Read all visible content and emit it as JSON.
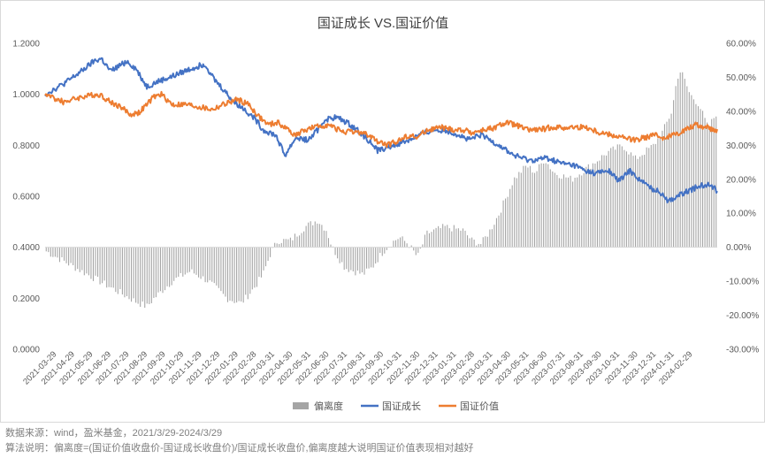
{
  "chart_data": {
    "type": "combo",
    "title": "国证成长 VS.国证价值",
    "left_axis": {
      "ylim": [
        0,
        1.2
      ],
      "step": 0.2,
      "ticks": [
        "0.0000",
        "0.2000",
        "0.4000",
        "0.6000",
        "0.8000",
        "1.0000",
        "1.2000"
      ]
    },
    "right_axis": {
      "ylim": [
        -30,
        60
      ],
      "step": 10,
      "ticks": [
        "-30.00%",
        "-20.00%",
        "-10.00%",
        "0.00%",
        "10.00%",
        "20.00%",
        "30.00%",
        "40.00%",
        "50.00%",
        "60.00%"
      ]
    },
    "categories": [
      "2021-03-29",
      "2021-04-29",
      "2021-05-29",
      "2021-06-29",
      "2021-07-29",
      "2021-08-29",
      "2021-09-29",
      "2021-10-29",
      "2021-11-29",
      "2021-12-29",
      "2022-01-29",
      "2022-02-28",
      "2022-03-31",
      "2022-04-30",
      "2022-05-31",
      "2022-06-30",
      "2022-07-31",
      "2022-08-31",
      "2022-09-30",
      "2022-10-31",
      "2022-11-30",
      "2022-12-31",
      "2023-01-31",
      "2023-02-28",
      "2023-03-31",
      "2023-04-30",
      "2023-05-31",
      "2023-06-30",
      "2023-07-31",
      "2023-08-31",
      "2023-09-30",
      "2023-10-31",
      "2023-11-30",
      "2023-12-31",
      "2024-01-31",
      "2024-02-29"
    ],
    "legend_position": "bottom",
    "series": [
      {
        "name": "偏离度",
        "type": "bar",
        "axis": "right",
        "color": "#a5a5a5",
        "keypoints": [
          [
            0,
            -1
          ],
          [
            1,
            -4
          ],
          [
            2,
            -7
          ],
          [
            3,
            -10
          ],
          [
            4,
            -13
          ],
          [
            5,
            -16
          ],
          [
            5.6,
            -17.5
          ],
          [
            6,
            -15
          ],
          [
            7,
            -10
          ],
          [
            8,
            -7
          ],
          [
            9,
            -10
          ],
          [
            10,
            -15
          ],
          [
            10.8,
            -16.5
          ],
          [
            11.5,
            -12
          ],
          [
            12,
            -8
          ],
          [
            12.4,
            -2
          ],
          [
            12.8,
            2
          ],
          [
            13.5,
            2
          ],
          [
            14.3,
            6
          ],
          [
            15,
            8
          ],
          [
            15.5,
            5
          ],
          [
            15.8,
            0
          ],
          [
            16.5,
            -6
          ],
          [
            17.5,
            -8
          ],
          [
            18,
            -6
          ],
          [
            18.5,
            -2
          ],
          [
            19,
            1
          ],
          [
            19.5,
            3
          ],
          [
            20,
            1
          ],
          [
            20.5,
            -3
          ],
          [
            21,
            4
          ],
          [
            22,
            6
          ],
          [
            23,
            5
          ],
          [
            23.5,
            2
          ],
          [
            24,
            1
          ],
          [
            24.5,
            5
          ],
          [
            25,
            10
          ],
          [
            25.8,
            20
          ],
          [
            26.5,
            24
          ],
          [
            27,
            22
          ],
          [
            27.5,
            26
          ],
          [
            28,
            22
          ],
          [
            29,
            20
          ],
          [
            29.5,
            22
          ],
          [
            30,
            24
          ],
          [
            31,
            28
          ],
          [
            31.8,
            30
          ],
          [
            32.5,
            26
          ],
          [
            33,
            28
          ],
          [
            33.5,
            30
          ],
          [
            34,
            34
          ],
          [
            34.5,
            40
          ],
          [
            34.8,
            50
          ],
          [
            35,
            52
          ],
          [
            35.5,
            45
          ],
          [
            36,
            42
          ],
          [
            36.5,
            35
          ],
          [
            37,
            40
          ]
        ]
      },
      {
        "name": "国证成长",
        "type": "line",
        "axis": "left",
        "color": "#4472c4",
        "keypoints": [
          [
            0,
            1.0
          ],
          [
            0.5,
            1.02
          ],
          [
            1,
            1.04
          ],
          [
            2,
            1.09
          ],
          [
            2.7,
            1.13
          ],
          [
            3.1,
            1.14
          ],
          [
            3.6,
            1.09
          ],
          [
            4.5,
            1.13
          ],
          [
            5,
            1.1
          ],
          [
            5.6,
            1.03
          ],
          [
            6.2,
            1.05
          ],
          [
            7,
            1.07
          ],
          [
            8,
            1.1
          ],
          [
            8.8,
            1.12
          ],
          [
            9.3,
            1.06
          ],
          [
            9.8,
            1.02
          ],
          [
            10.4,
            0.97
          ],
          [
            11,
            0.94
          ],
          [
            11.6,
            0.9
          ],
          [
            12,
            0.86
          ],
          [
            12.7,
            0.84
          ],
          [
            13.2,
            0.76
          ],
          [
            13.8,
            0.83
          ],
          [
            14.5,
            0.82
          ],
          [
            15,
            0.86
          ],
          [
            15.4,
            0.9
          ],
          [
            16,
            0.91
          ],
          [
            16.6,
            0.89
          ],
          [
            17.2,
            0.86
          ],
          [
            17.8,
            0.82
          ],
          [
            18.3,
            0.78
          ],
          [
            19.2,
            0.8
          ],
          [
            20,
            0.82
          ],
          [
            20.6,
            0.84
          ],
          [
            21.4,
            0.86
          ],
          [
            22,
            0.86
          ],
          [
            22.8,
            0.84
          ],
          [
            23.3,
            0.82
          ],
          [
            24,
            0.84
          ],
          [
            24.5,
            0.82
          ],
          [
            25,
            0.8
          ],
          [
            25.8,
            0.76
          ],
          [
            26.7,
            0.74
          ],
          [
            27.6,
            0.75
          ],
          [
            28.4,
            0.73
          ],
          [
            29.2,
            0.72
          ],
          [
            29.7,
            0.7
          ],
          [
            30.3,
            0.69
          ],
          [
            31,
            0.7
          ],
          [
            31.6,
            0.66
          ],
          [
            32.2,
            0.7
          ],
          [
            32.8,
            0.66
          ],
          [
            33.4,
            0.63
          ],
          [
            34,
            0.61
          ],
          [
            34.3,
            0.58
          ],
          [
            34.8,
            0.6
          ],
          [
            35.4,
            0.62
          ],
          [
            36,
            0.64
          ],
          [
            36.6,
            0.65
          ],
          [
            37,
            0.62
          ]
        ]
      },
      {
        "name": "国证价值",
        "type": "line",
        "axis": "left",
        "color": "#ed7d31",
        "keypoints": [
          [
            0,
            1.0
          ],
          [
            1,
            0.97
          ],
          [
            2,
            0.99
          ],
          [
            3,
            1.0
          ],
          [
            3.6,
            0.97
          ],
          [
            4.2,
            0.95
          ],
          [
            4.7,
            0.92
          ],
          [
            5.2,
            0.93
          ],
          [
            6,
            0.99
          ],
          [
            6.4,
            1.0
          ],
          [
            7,
            0.96
          ],
          [
            7.8,
            0.96
          ],
          [
            8.5,
            0.95
          ],
          [
            9.2,
            0.94
          ],
          [
            9.8,
            0.96
          ],
          [
            10.6,
            0.98
          ],
          [
            11.2,
            0.96
          ],
          [
            11.8,
            0.91
          ],
          [
            12.3,
            0.88
          ],
          [
            12.8,
            0.89
          ],
          [
            13.2,
            0.87
          ],
          [
            13.8,
            0.84
          ],
          [
            14.3,
            0.86
          ],
          [
            14.8,
            0.87
          ],
          [
            15.5,
            0.88
          ],
          [
            16.2,
            0.86
          ],
          [
            16.8,
            0.85
          ],
          [
            17.5,
            0.85
          ],
          [
            18.2,
            0.82
          ],
          [
            18.8,
            0.8
          ],
          [
            19.5,
            0.82
          ],
          [
            20,
            0.84
          ],
          [
            20.5,
            0.83
          ],
          [
            21,
            0.86
          ],
          [
            21.8,
            0.87
          ],
          [
            22.5,
            0.86
          ],
          [
            23,
            0.86
          ],
          [
            23.5,
            0.85
          ],
          [
            24.2,
            0.86
          ],
          [
            24.8,
            0.87
          ],
          [
            25.4,
            0.89
          ],
          [
            25.9,
            0.88
          ],
          [
            26.5,
            0.86
          ],
          [
            27.2,
            0.86
          ],
          [
            27.8,
            0.87
          ],
          [
            28.5,
            0.87
          ],
          [
            29.2,
            0.87
          ],
          [
            29.8,
            0.87
          ],
          [
            30.5,
            0.85
          ],
          [
            31.2,
            0.84
          ],
          [
            31.8,
            0.83
          ],
          [
            32.4,
            0.82
          ],
          [
            33,
            0.83
          ],
          [
            33.5,
            0.84
          ],
          [
            34,
            0.83
          ],
          [
            34.6,
            0.84
          ],
          [
            35.2,
            0.86
          ],
          [
            35.8,
            0.88
          ],
          [
            36.4,
            0.87
          ],
          [
            37,
            0.86
          ]
        ]
      }
    ]
  },
  "notes": {
    "source": "数据来源：wind，盈米基金，2021/3/29-2024/3/29",
    "method": "算法说明：偏离度=(国证价值收盘价-国证成长收盘价)/国证成长收盘价,偏离度越大说明国证价值表现相对越好"
  }
}
